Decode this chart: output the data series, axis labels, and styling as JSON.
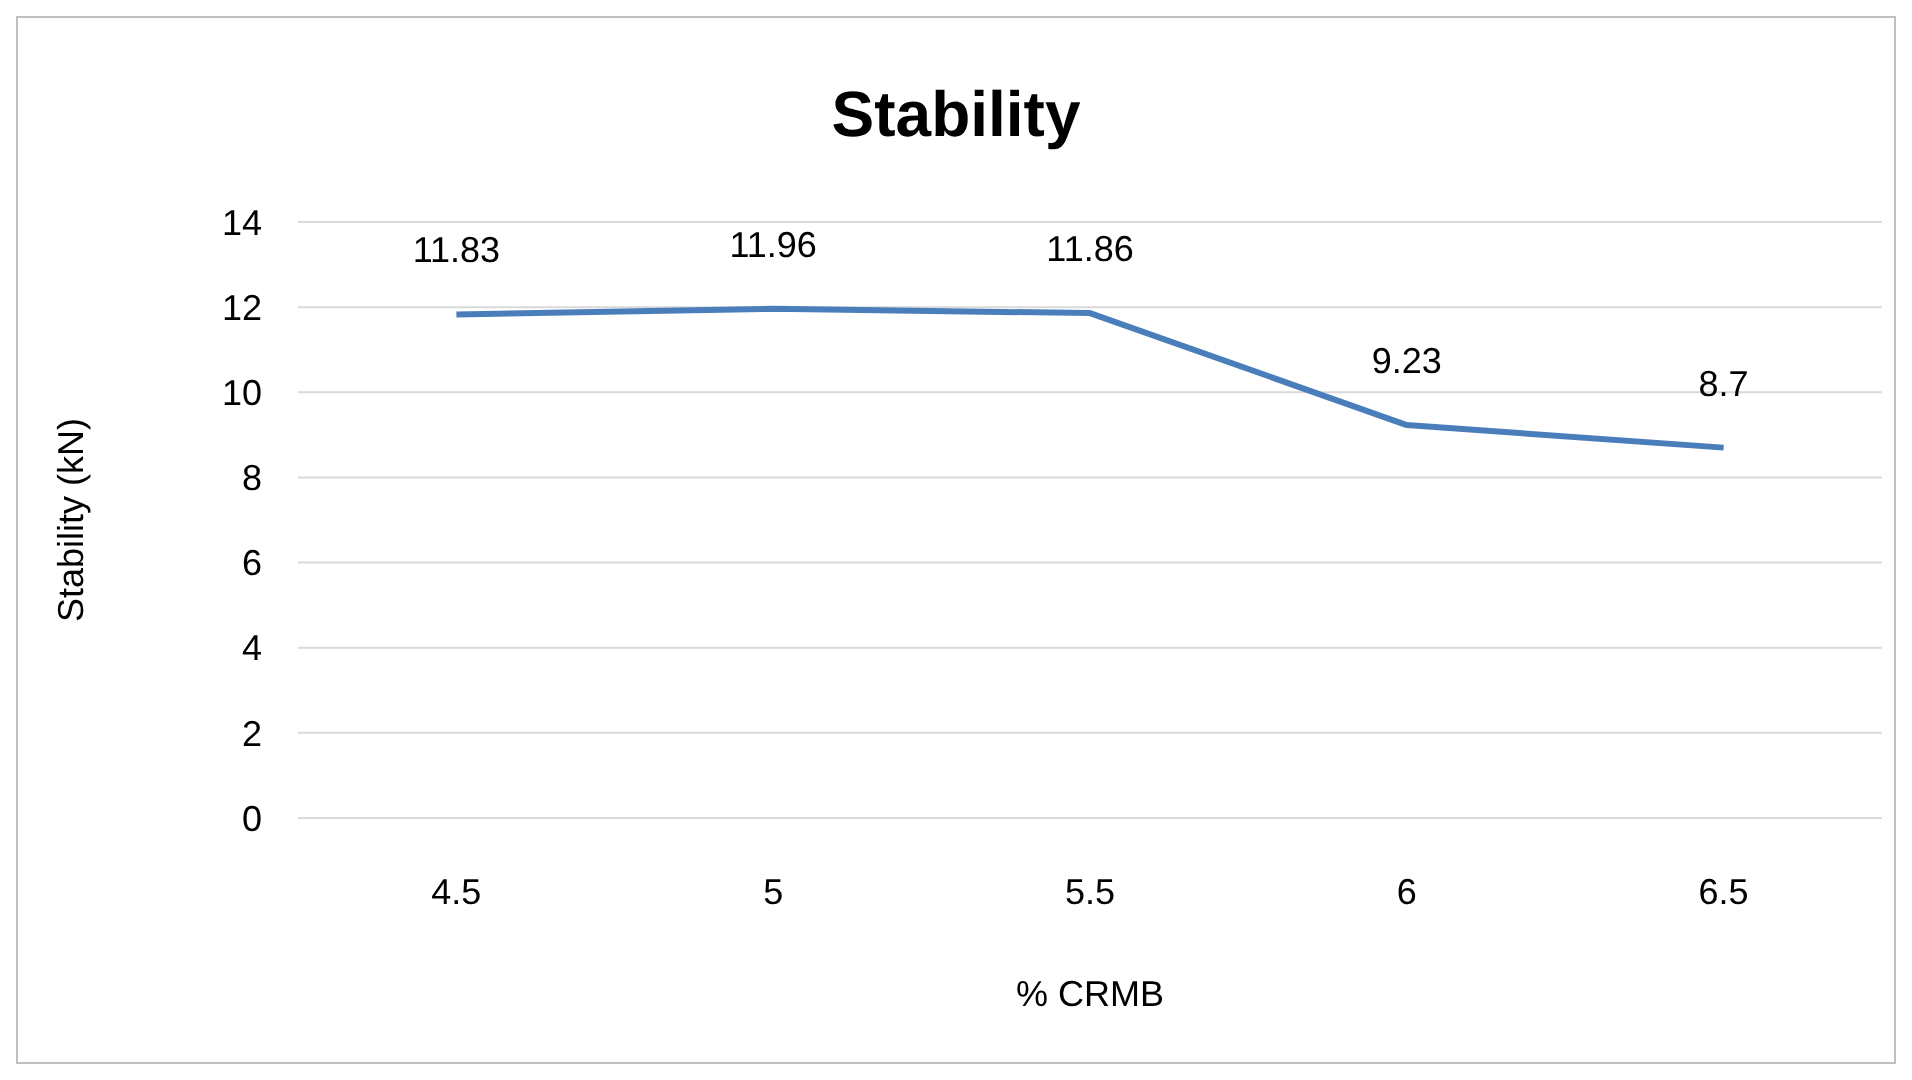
{
  "chart_data": {
    "type": "line",
    "title": "Stability",
    "xlabel": "% CRMB",
    "ylabel": "Stability (kN)",
    "categories": [
      "4.5",
      "5",
      "5.5",
      "6",
      "6.5"
    ],
    "series": [
      {
        "color": "#4a7ebb",
        "values": [
          11.83,
          11.96,
          11.86,
          9.23,
          8.7
        ]
      }
    ],
    "ylim": [
      0,
      14
    ],
    "yticks": [
      0,
      2,
      4,
      6,
      8,
      10,
      12,
      14
    ],
    "grid": "y",
    "data_labels": true,
    "marker": "none"
  }
}
